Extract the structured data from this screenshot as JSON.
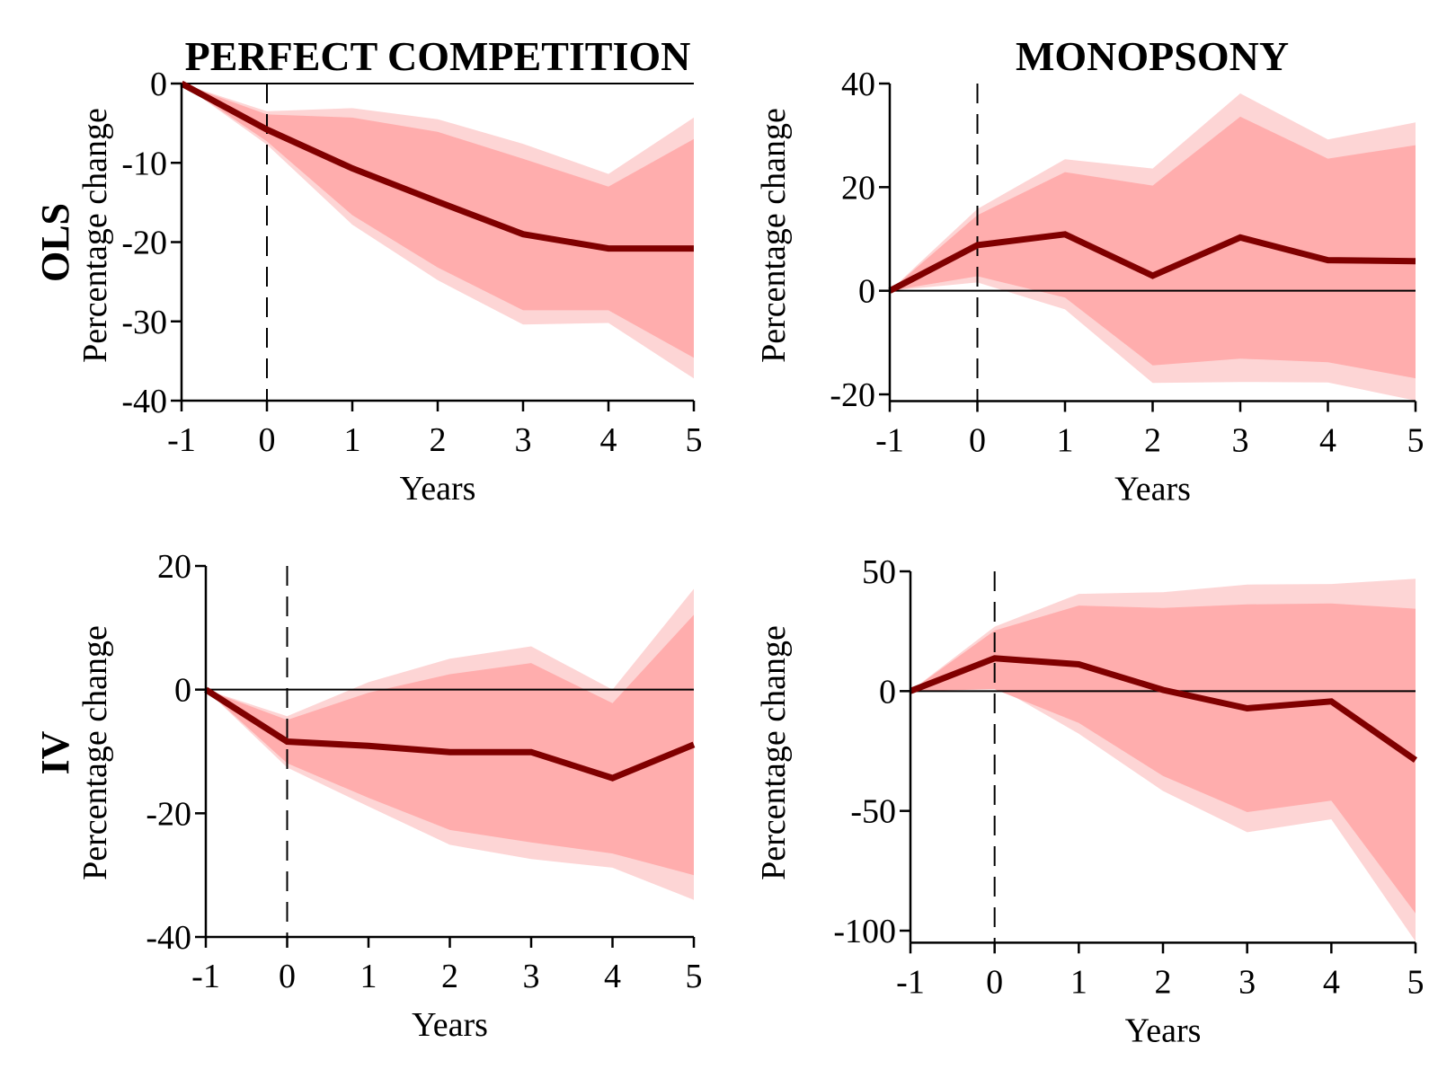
{
  "figure": {
    "column_titles": [
      "PERFECT COMPETITION",
      "MONOPSONY"
    ],
    "row_labels": [
      "OLS",
      "IV"
    ],
    "colors": {
      "line": "#800000",
      "inner_band": "#FFADAD",
      "outer_band": "#FDD5D5",
      "axis": "#000000"
    }
  },
  "chart_data": [
    {
      "type": "area",
      "panel": "OLS / PERFECT COMPETITION",
      "title": "PERFECT COMPETITION",
      "row_label": "OLS",
      "xlabel": "Years",
      "ylabel": "Percentage change",
      "x": [
        -1,
        0,
        1,
        2,
        3,
        4,
        5
      ],
      "xticks": [
        "-1",
        "0",
        "1",
        "2",
        "3",
        "4",
        "5"
      ],
      "yticks": [
        0,
        -10,
        -20,
        -30,
        -40
      ],
      "ytick_labels": [
        "0",
        "-10",
        "-20",
        "-30",
        "-40"
      ],
      "ylim": [
        -40,
        0
      ],
      "zero_line": true,
      "event_line_x": 0,
      "series": [
        {
          "name": "point estimate",
          "values": [
            0,
            -5.8,
            -10.7,
            -14.9,
            -19.0,
            -20.8,
            -20.8
          ]
        },
        {
          "name": "inner band upper",
          "values": [
            0,
            -3.9,
            -4.3,
            -6.1,
            -9.5,
            -13.0,
            -7.0
          ]
        },
        {
          "name": "inner band lower",
          "values": [
            0,
            -7.3,
            -16.6,
            -23.2,
            -28.6,
            -28.6,
            -34.6
          ]
        },
        {
          "name": "outer band upper",
          "values": [
            0,
            -3.5,
            -3.1,
            -4.5,
            -7.6,
            -11.4,
            -4.3
          ]
        },
        {
          "name": "outer band lower",
          "values": [
            0,
            -7.7,
            -17.8,
            -24.8,
            -30.4,
            -30.2,
            -37.2
          ]
        }
      ]
    },
    {
      "type": "area",
      "panel": "OLS / MONOPSONY",
      "title": "MONOPSONY",
      "row_label": "OLS",
      "xlabel": "Years",
      "ylabel": "Percentage change",
      "x": [
        -1,
        0,
        1,
        2,
        3,
        4,
        5
      ],
      "xticks": [
        "-1",
        "0",
        "1",
        "2",
        "3",
        "4",
        "5"
      ],
      "yticks": [
        40,
        20,
        0,
        -20
      ],
      "ytick_labels": [
        "40",
        "20",
        "0",
        "-20"
      ],
      "ylim": [
        -21.3,
        40
      ],
      "zero_line": true,
      "event_line_x": 0,
      "series": [
        {
          "name": "point estimate",
          "values": [
            0,
            8.8,
            10.9,
            2.9,
            10.3,
            5.9,
            5.7
          ]
        },
        {
          "name": "inner band upper",
          "values": [
            0,
            14.6,
            22.9,
            20.3,
            33.6,
            25.5,
            28.1
          ]
        },
        {
          "name": "inner band lower",
          "values": [
            0,
            2.8,
            -1.3,
            -14.4,
            -13.1,
            -13.8,
            -16.9
          ]
        },
        {
          "name": "outer band upper",
          "values": [
            0,
            15.8,
            25.4,
            23.6,
            38.1,
            29.2,
            32.5
          ]
        },
        {
          "name": "outer band lower",
          "values": [
            0,
            1.6,
            -3.6,
            -17.8,
            -17.6,
            -17.7,
            -21.2
          ]
        }
      ]
    },
    {
      "type": "area",
      "panel": "IV / PERFECT COMPETITION",
      "title": "",
      "row_label": "IV",
      "xlabel": "Years",
      "ylabel": "Percentage change",
      "x": [
        -1,
        0,
        1,
        2,
        3,
        4,
        5
      ],
      "xticks": [
        "-1",
        "0",
        "1",
        "2",
        "3",
        "4",
        "5"
      ],
      "yticks": [
        20,
        0,
        -20,
        -40
      ],
      "ytick_labels": [
        "20",
        "0",
        "-20",
        "-40"
      ],
      "ylim": [
        -40,
        20
      ],
      "zero_line": true,
      "event_line_x": 0,
      "series": [
        {
          "name": "point estimate",
          "values": [
            0,
            -8.4,
            -9.1,
            -10.1,
            -10.1,
            -14.3,
            -8.9
          ]
        },
        {
          "name": "inner band upper",
          "values": [
            0,
            -4.9,
            -0.5,
            2.5,
            4.3,
            -2.2,
            12.1
          ]
        },
        {
          "name": "inner band lower",
          "values": [
            0,
            -11.9,
            -17.5,
            -22.7,
            -24.7,
            -26.5,
            -30.0
          ]
        },
        {
          "name": "outer band upper",
          "values": [
            0,
            -4.3,
            1.2,
            5.0,
            7.0,
            0.0,
            16.3
          ]
        },
        {
          "name": "outer band lower",
          "values": [
            0,
            -12.6,
            -18.9,
            -25.1,
            -27.4,
            -28.8,
            -34.0
          ]
        }
      ]
    },
    {
      "type": "area",
      "panel": "IV / MONOPSONY",
      "title": "",
      "row_label": "IV",
      "xlabel": "Years",
      "ylabel": "Percentage change",
      "x": [
        -1,
        0,
        1,
        2,
        3,
        4,
        5
      ],
      "xticks": [
        "-1",
        "0",
        "1",
        "2",
        "3",
        "4",
        "5"
      ],
      "yticks": [
        50,
        0,
        -50,
        -100
      ],
      "ytick_labels": [
        "50",
        "0",
        "-50",
        "-100"
      ],
      "ylim": [
        -105,
        50
      ],
      "zero_line": true,
      "event_line_x": 0,
      "series": [
        {
          "name": "point estimate",
          "values": [
            0,
            13.7,
            11.2,
            0.5,
            -7.2,
            -4.3,
            -28.8
          ]
        },
        {
          "name": "inner band upper",
          "values": [
            0,
            25.3,
            35.7,
            34.7,
            36.2,
            36.6,
            34.4
          ]
        },
        {
          "name": "inner band lower",
          "values": [
            0,
            0.8,
            -13.3,
            -35.4,
            -50.5,
            -45.7,
            -92.8
          ]
        },
        {
          "name": "outer band upper",
          "values": [
            0,
            26.9,
            40.6,
            41.3,
            44.5,
            44.7,
            46.9
          ]
        },
        {
          "name": "outer band lower",
          "values": [
            0,
            2.4,
            -17.8,
            -41.7,
            -58.9,
            -53.5,
            -104.5
          ]
        }
      ]
    }
  ]
}
